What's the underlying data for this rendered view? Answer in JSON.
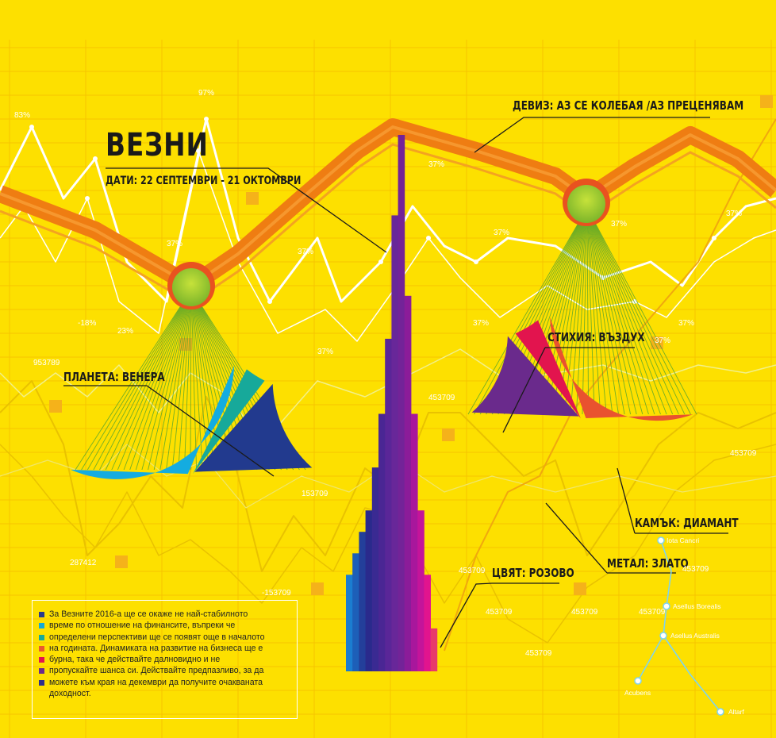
{
  "title": "ВЕЗНИ",
  "dates": "ДАТИ: 22 СЕПТЕМВРИ - 21 ОКТОМВРИ",
  "labels": {
    "motto": "ДЕВИЗ: АЗ СЕ КОЛЕБАЯ /АЗ ПРЕЦЕНЯВАМ",
    "planet": "ПЛАНЕТА: ВЕНЕРА",
    "element": "СТИХИЯ: ВЪЗДУХ",
    "stone": "КАМЪК: ДИАМАНТ",
    "metal": "МЕТАЛ: ЗЛАТО",
    "color": "ЦВЯТ: РОЗОВО"
  },
  "legend_lines": [
    {
      "text": "За Везните 2016-а ще се окаже не най-стабилното",
      "color": "#283a8c"
    },
    {
      "text": "време по отношение на финансите, въпреки че",
      "color": "#14a9d6"
    },
    {
      "text": "определени перспективи ще се появят още в началото",
      "color": "#18a99a"
    },
    {
      "text": "на годината. Динамиката на развитие на бизнеса ще е",
      "color": "#e9582f"
    },
    {
      "text": "бурна, така че действайте далновидно и не",
      "color": "#e2144e"
    },
    {
      "text": "пропускайте шанса си. Действайте предпазливо, за да",
      "color": "#6a2a8c"
    },
    {
      "text": "можете към края на декември да получите очакваната",
      "color": "#2f2f8a"
    },
    {
      "text": "доходност.",
      "color": ""
    }
  ],
  "background_numbers": [
    "83%",
    "97%",
    "37%",
    "37%",
    "-18%",
    "23%",
    "37%",
    "37%",
    "37%",
    "37%",
    "37%",
    "37%",
    "37%",
    "37%",
    "953789",
    "453709",
    "287412",
    "153709",
    "-153709",
    "453709",
    "453709",
    "453709",
    "453709",
    "453709",
    "453709",
    "453709"
  ],
  "constellation": [
    "Iota Cancri",
    "Asellus Borealis",
    "Asellus Australis",
    "Acubens",
    "Altarf"
  ],
  "colors": {
    "background": "#fde000",
    "orange_line": "#ef7d12",
    "left_pie": [
      "#14ace0",
      "#17a99a",
      "#223a8e"
    ],
    "right_pie": [
      "#6a2a8c",
      "#e2144e",
      "#e9522f"
    ]
  },
  "chart_data": [
    {
      "type": "pie",
      "series": [
        {
          "values": [
            64,
            8,
            28
          ]
        }
      ],
      "colors": [
        "#14ace0",
        "#17a99a",
        "#223a8e"
      ]
    },
    {
      "type": "pie",
      "series": [
        {
          "values": [
            28,
            10,
            62
          ]
        }
      ],
      "colors": [
        "#6a2a8c",
        "#e2144e",
        "#e9522f"
      ]
    },
    {
      "type": "bar",
      "values": [
        18,
        22,
        26,
        30,
        38,
        48,
        62,
        85,
        100,
        70,
        48,
        30,
        18,
        8
      ],
      "colors": [
        "#1b7dd0",
        "#1d5fb8",
        "#233f9a",
        "#2a2a8c",
        "#3a2a92",
        "#4a2694",
        "#5a2698",
        "#682799",
        "#732398",
        "#8b1c99",
        "#a8179c",
        "#c4149a",
        "#e2148e",
        "#e83a6a"
      ]
    }
  ]
}
